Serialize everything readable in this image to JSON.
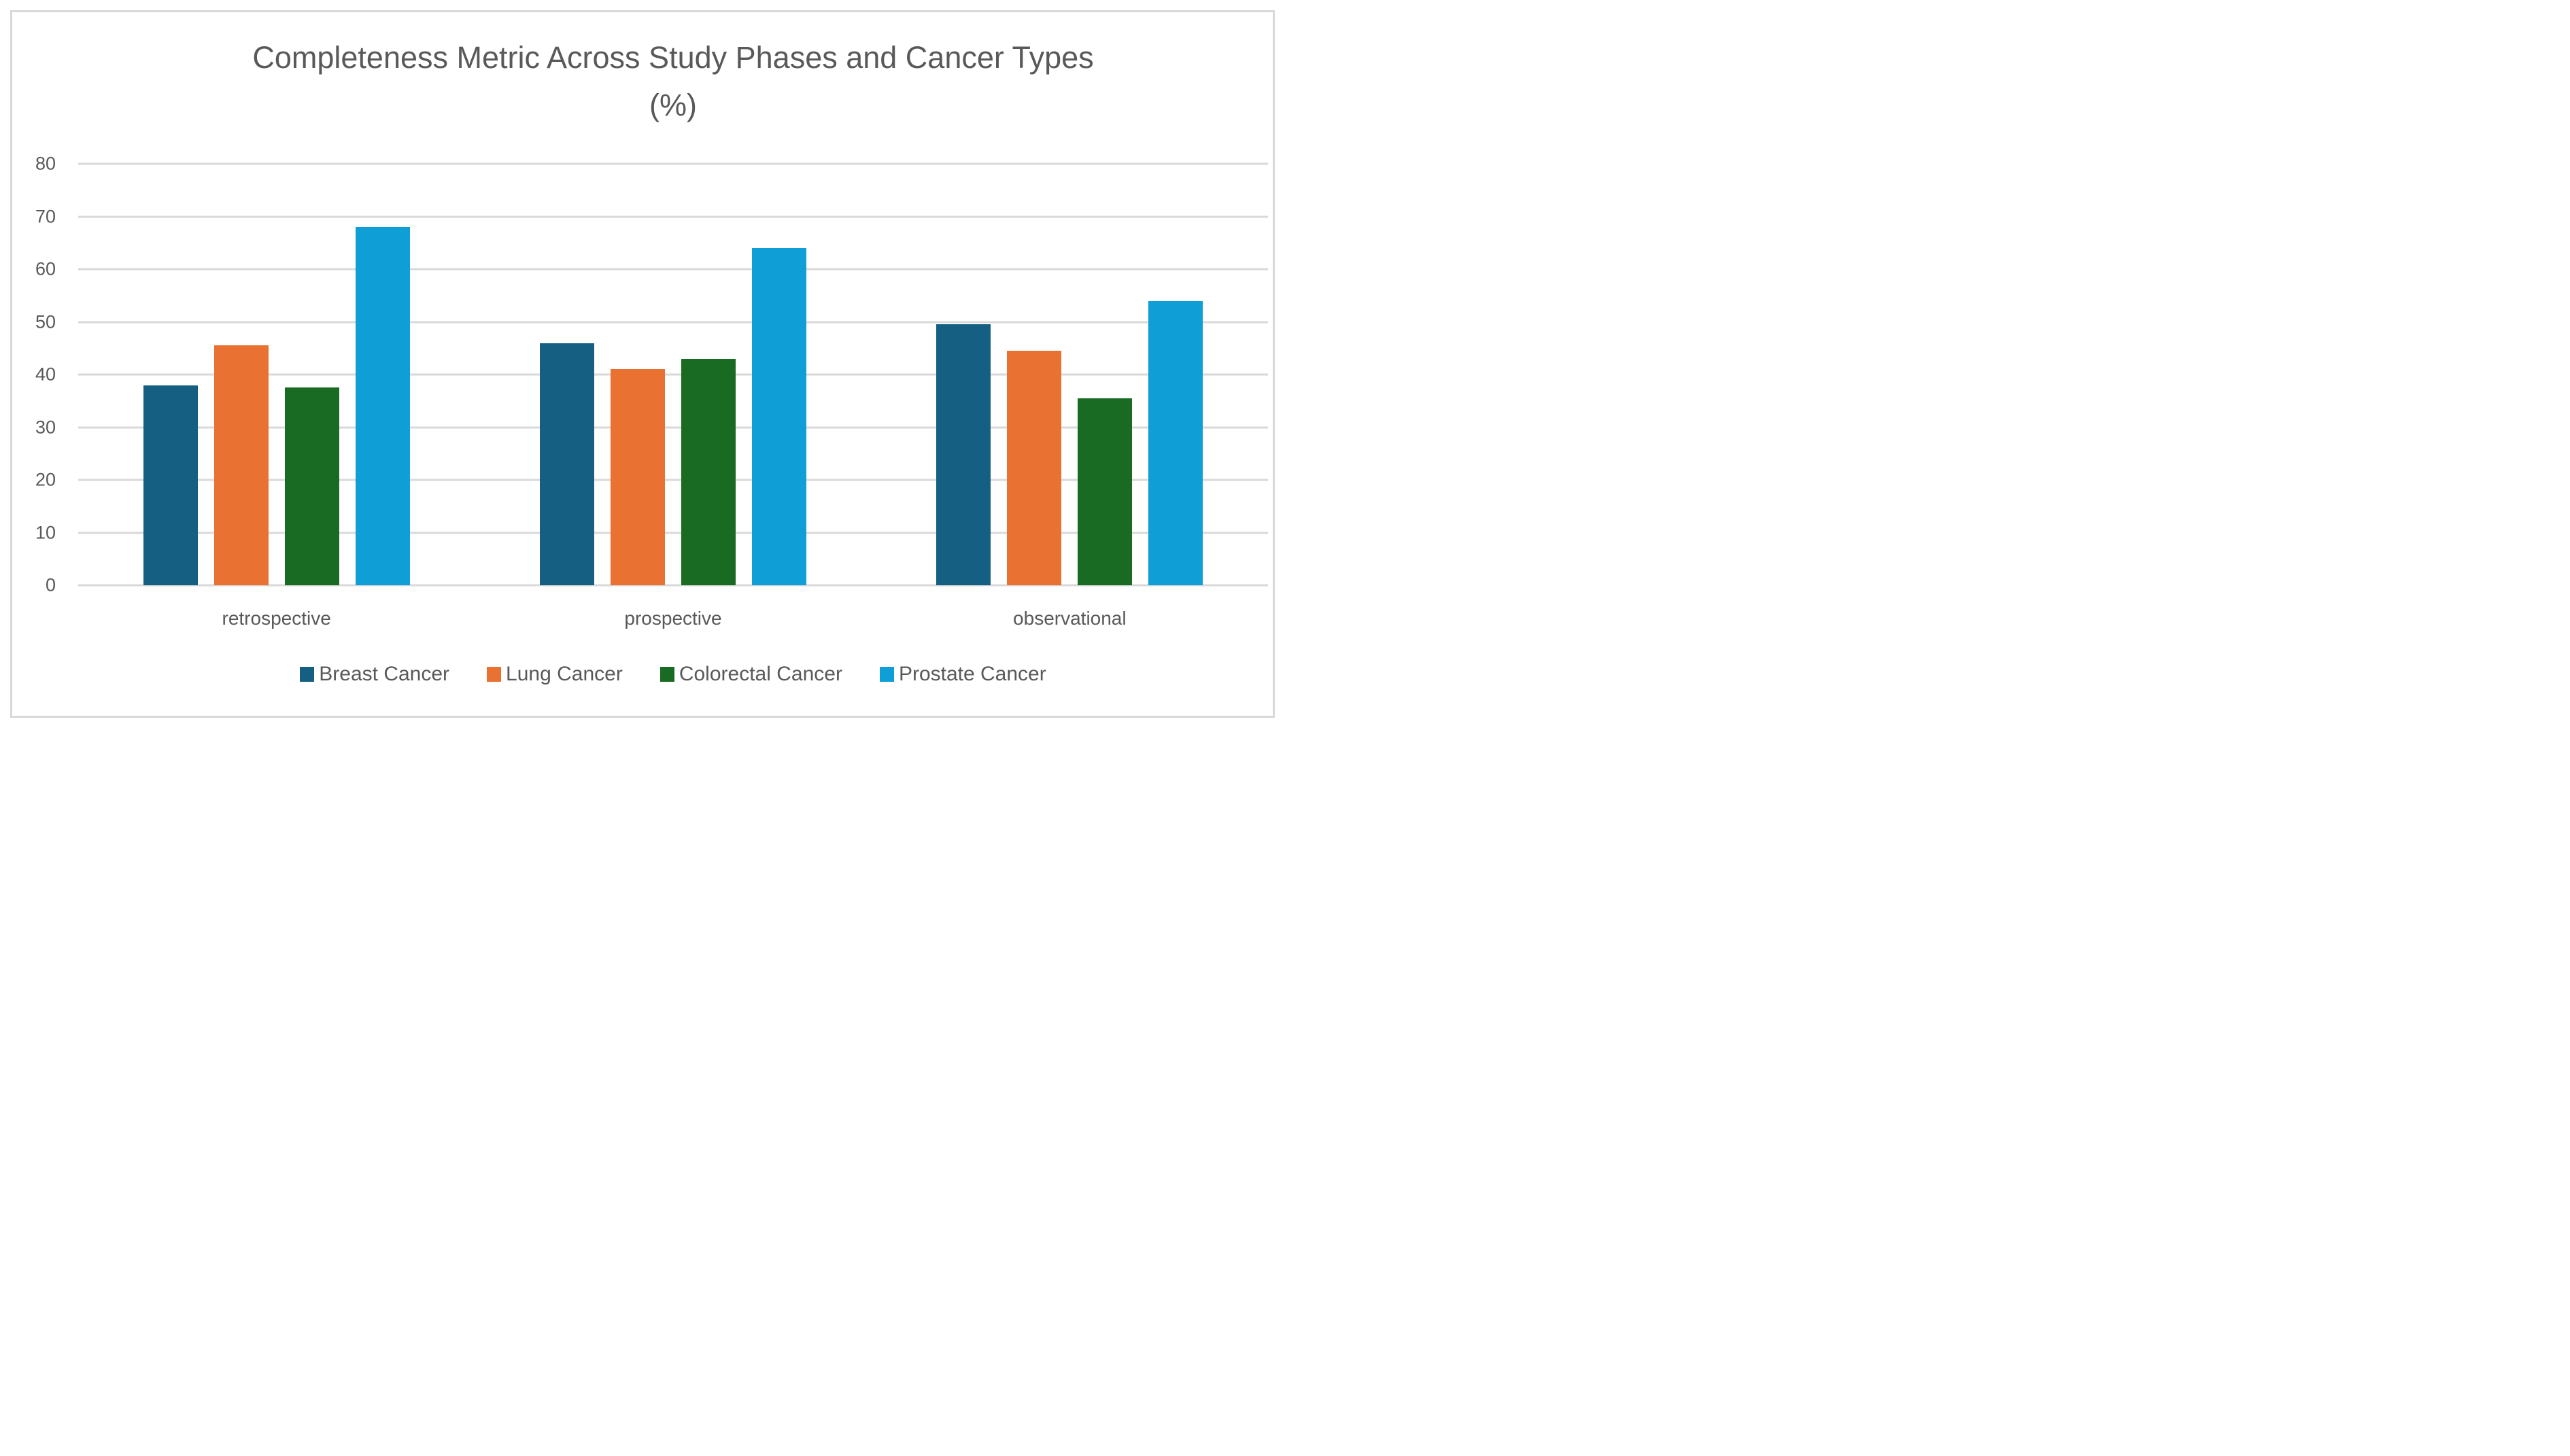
{
  "title": {
    "line1": "Completeness Metric Across Study Phases and Cancer Types",
    "line2": "(%)"
  },
  "chart_data": {
    "type": "bar",
    "title": "Completeness Metric Across Study Phases and Cancer Types (%)",
    "categories": [
      "retrospective",
      "prospective",
      "observational"
    ],
    "series": [
      {
        "name": "Breast Cancer",
        "color": "#156082",
        "values": [
          38,
          46,
          49.6
        ]
      },
      {
        "name": "Lung Cancer",
        "color": "#E97132",
        "values": [
          45.5,
          41,
          44.5
        ]
      },
      {
        "name": "Colorectal Cancer",
        "color": "#196B24",
        "values": [
          37.5,
          43,
          35.5
        ]
      },
      {
        "name": "Prostate Cancer",
        "color": "#0F9ED5",
        "values": [
          68,
          64,
          54
        ]
      }
    ],
    "xlabel": "",
    "ylabel": "",
    "ylim": [
      0,
      80
    ],
    "yticks": [
      0,
      10,
      20,
      30,
      40,
      50,
      60,
      70,
      80
    ],
    "grid": "horizontal",
    "legend_position": "bottom",
    "colors": {
      "text": "#595959",
      "gridline": "#D9D9D9",
      "frame_border": "#D9D9D9",
      "background": "#FFFFFF"
    }
  }
}
